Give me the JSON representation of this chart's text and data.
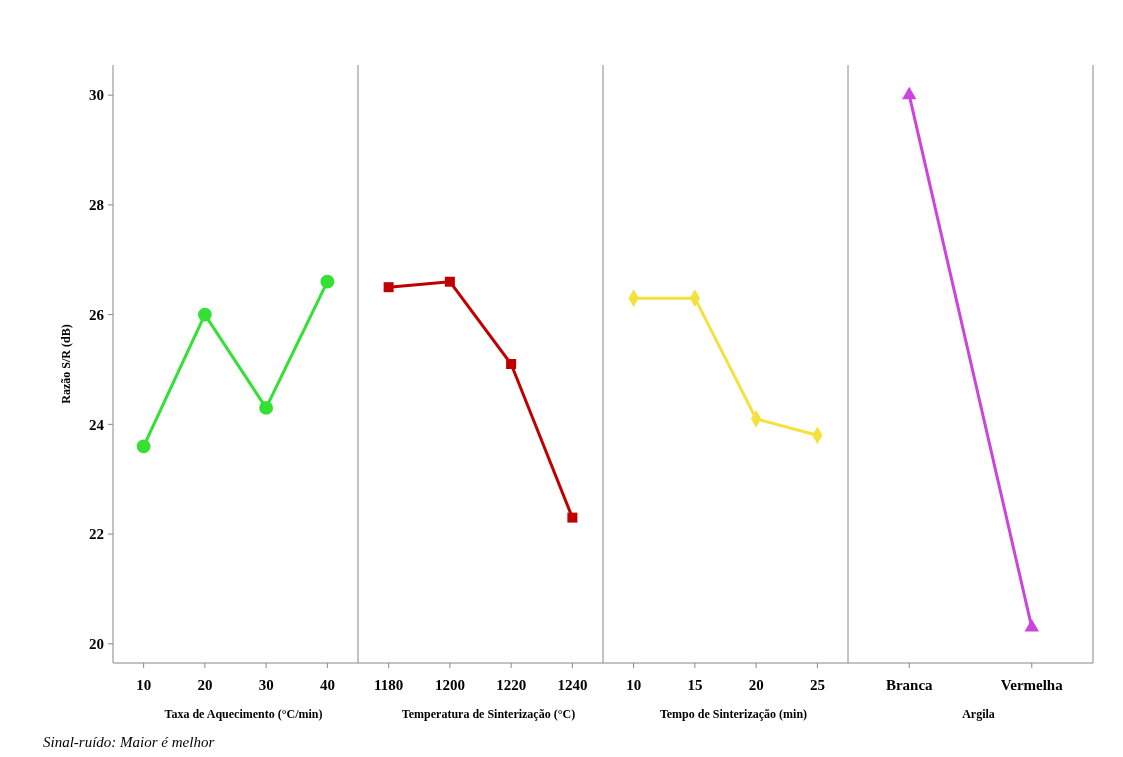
{
  "chart_data": [
    {
      "type": "line",
      "xlabel": "Taxa de Aquecimento (°C/min)",
      "ylabel": "Razão S/R (dB)",
      "categories": [
        "10",
        "20",
        "30",
        "40"
      ],
      "ylim": [
        19.65,
        30.55
      ],
      "yticks": [
        20,
        22,
        24,
        26,
        28,
        30
      ],
      "marker": "circle",
      "series": [
        {
          "color": "#33e033",
          "values": [
            23.6,
            26.0,
            24.3,
            26.6
          ]
        }
      ],
      "annotations": [
        "Sinal-ruído: Maior é melhor"
      ]
    },
    {
      "type": "line",
      "xlabel": "Temperatura de Sinterização (°C)",
      "categories": [
        "1180",
        "1200",
        "1220",
        "1240"
      ],
      "ylim": [
        19.65,
        30.55
      ],
      "tick_labels": "x",
      "marker": "square",
      "series": [
        {
          "color": "#c00000",
          "values": [
            26.5,
            26.6,
            25.1,
            22.3
          ]
        }
      ]
    },
    {
      "type": "line",
      "xlabel": "Tempo de Sinterização (min)",
      "categories": [
        "10",
        "15",
        "20",
        "25"
      ],
      "ylim": [
        19.65,
        30.55
      ],
      "tick_labels": "x",
      "marker": "diamond",
      "series": [
        {
          "color": "#f5e13c",
          "values": [
            26.3,
            26.3,
            24.1,
            23.8
          ]
        }
      ]
    },
    {
      "type": "line",
      "xlabel": "Argila",
      "categories": [
        "Branca",
        "Vermelha"
      ],
      "ylim": [
        19.65,
        30.55
      ],
      "tick_labels": "x",
      "marker": "triangle",
      "series": [
        {
          "color": "#cc44dd",
          "values": [
            30.0,
            20.3
          ]
        }
      ]
    }
  ]
}
